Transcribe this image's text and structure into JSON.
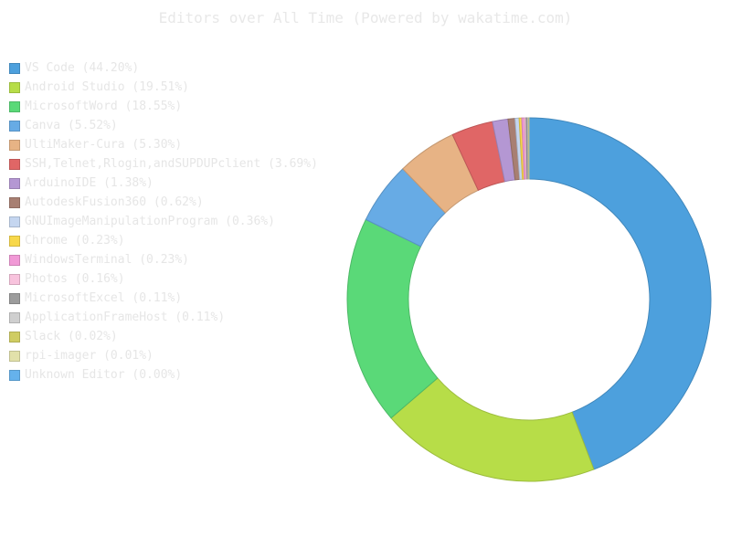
{
  "chart_data": {
    "type": "pie",
    "title": "Editors over All Time (Powered by wakatime.com)",
    "legend_position": "left",
    "slices": [
      {
        "label": "VS Code (44.20%)",
        "value": 44.2,
        "color": "#4da0dd"
      },
      {
        "label": "Android Studio (19.51%)",
        "value": 19.51,
        "color": "#b7dd48"
      },
      {
        "label": "MicrosoftWord (18.55%)",
        "value": 18.55,
        "color": "#5ad978"
      },
      {
        "label": "Canva (5.52%)",
        "value": 5.52,
        "color": "#67abe5"
      },
      {
        "label": "UltiMaker-Cura (5.30%)",
        "value": 5.3,
        "color": "#e7b385"
      },
      {
        "label": "SSH,Telnet,Rlogin,andSUPDUPclient (3.69%)",
        "value": 3.69,
        "color": "#e06666"
      },
      {
        "label": "ArduinoIDE (1.38%)",
        "value": 1.38,
        "color": "#b497d3"
      },
      {
        "label": "AutodeskFusion360 (0.62%)",
        "value": 0.62,
        "color": "#a87f72"
      },
      {
        "label": "GNUImageManipulationProgram (0.36%)",
        "value": 0.36,
        "color": "#c5d6f0"
      },
      {
        "label": "Chrome (0.23%)",
        "value": 0.23,
        "color": "#f8d84a"
      },
      {
        "label": "WindowsTerminal (0.23%)",
        "value": 0.23,
        "color": "#f199d6"
      },
      {
        "label": "Photos (0.16%)",
        "value": 0.16,
        "color": "#f8c3dd"
      },
      {
        "label": "MicrosoftExcel (0.11%)",
        "value": 0.11,
        "color": "#9c9c9c"
      },
      {
        "label": "ApplicationFrameHost (0.11%)",
        "value": 0.11,
        "color": "#cfcfcf"
      },
      {
        "label": "Slack (0.02%)",
        "value": 0.02,
        "color": "#cfcc62"
      },
      {
        "label": "rpi-imager (0.01%)",
        "value": 0.01,
        "color": "#e2e1aa"
      },
      {
        "label": "Unknown Editor (0.00%)",
        "value": 0.0,
        "color": "#65b2ec"
      }
    ]
  }
}
